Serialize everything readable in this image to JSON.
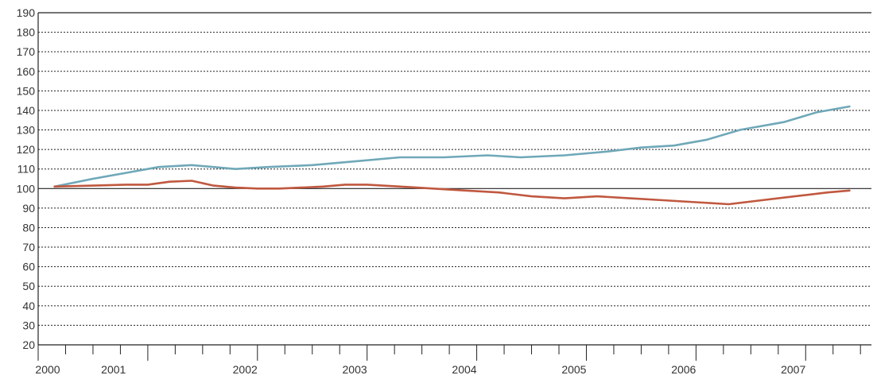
{
  "chart_data": {
    "type": "line",
    "title": "",
    "xlabel": "",
    "ylabel": "",
    "ylim": [
      20,
      190
    ],
    "xlim": [
      2000.0,
      2007.6
    ],
    "baseline": 100,
    "grid": {
      "horizontal": true,
      "style": "dotted"
    },
    "legend": "none",
    "yticks": [
      20,
      30,
      40,
      50,
      60,
      70,
      80,
      90,
      100,
      110,
      120,
      130,
      140,
      150,
      160,
      170,
      180,
      190
    ],
    "xtick_labels": [
      {
        "label": "2000",
        "x": 2000.0
      },
      {
        "label": "2001",
        "x": 2000.6
      },
      {
        "label": "2002",
        "x": 2001.8
      },
      {
        "label": "2003",
        "x": 2002.8
      },
      {
        "label": "2004",
        "x": 2003.8
      },
      {
        "label": "2005",
        "x": 2004.8
      },
      {
        "label": "2006",
        "x": 2005.8
      },
      {
        "label": "2007",
        "x": 2006.8
      }
    ],
    "quarter_ticks": [
      2000.0,
      2000.25,
      2000.5,
      2000.75,
      2001.0,
      2001.25,
      2001.5,
      2001.75,
      2002.0,
      2002.25,
      2002.5,
      2002.75,
      2003.0,
      2003.25,
      2003.5,
      2003.75,
      2004.0,
      2004.25,
      2004.5,
      2004.75,
      2005.0,
      2005.25,
      2005.5,
      2005.75,
      2006.0,
      2006.25,
      2006.5,
      2006.75,
      2007.0,
      2007.25,
      2007.5
    ],
    "series": [
      {
        "color": "#6fa8b8",
        "x": [
          2000.15,
          2000.5,
          2000.8,
          2001.1,
          2001.4,
          2001.8,
          2002.1,
          2002.5,
          2002.9,
          2003.3,
          2003.7,
          2004.1,
          2004.4,
          2004.8,
          2005.2,
          2005.5,
          2005.8,
          2006.1,
          2006.4,
          2006.8,
          2007.1,
          2007.4
        ],
        "values": [
          101,
          105,
          108,
          111,
          112,
          110,
          111,
          112,
          114,
          116,
          116,
          117,
          116,
          117,
          119,
          121,
          122,
          125,
          130,
          134,
          139,
          142
        ]
      },
      {
        "color": "#c0583f",
        "x": [
          2000.15,
          2000.5,
          2000.8,
          2001.0,
          2001.2,
          2001.4,
          2001.6,
          2001.8,
          2002.0,
          2002.2,
          2002.4,
          2002.6,
          2002.8,
          2003.0,
          2003.3,
          2003.6,
          2003.9,
          2004.2,
          2004.5,
          2004.8,
          2005.1,
          2005.4,
          2005.7,
          2006.0,
          2006.3,
          2006.6,
          2006.9,
          2007.2,
          2007.4
        ],
        "values": [
          101,
          101.5,
          102,
          102,
          103.5,
          104,
          101.5,
          100.5,
          100,
          100,
          100.5,
          101,
          102,
          102,
          101,
          100,
          99,
          98,
          96,
          95,
          96,
          95,
          94,
          93,
          92,
          94,
          96,
          98,
          99
        ]
      }
    ]
  }
}
